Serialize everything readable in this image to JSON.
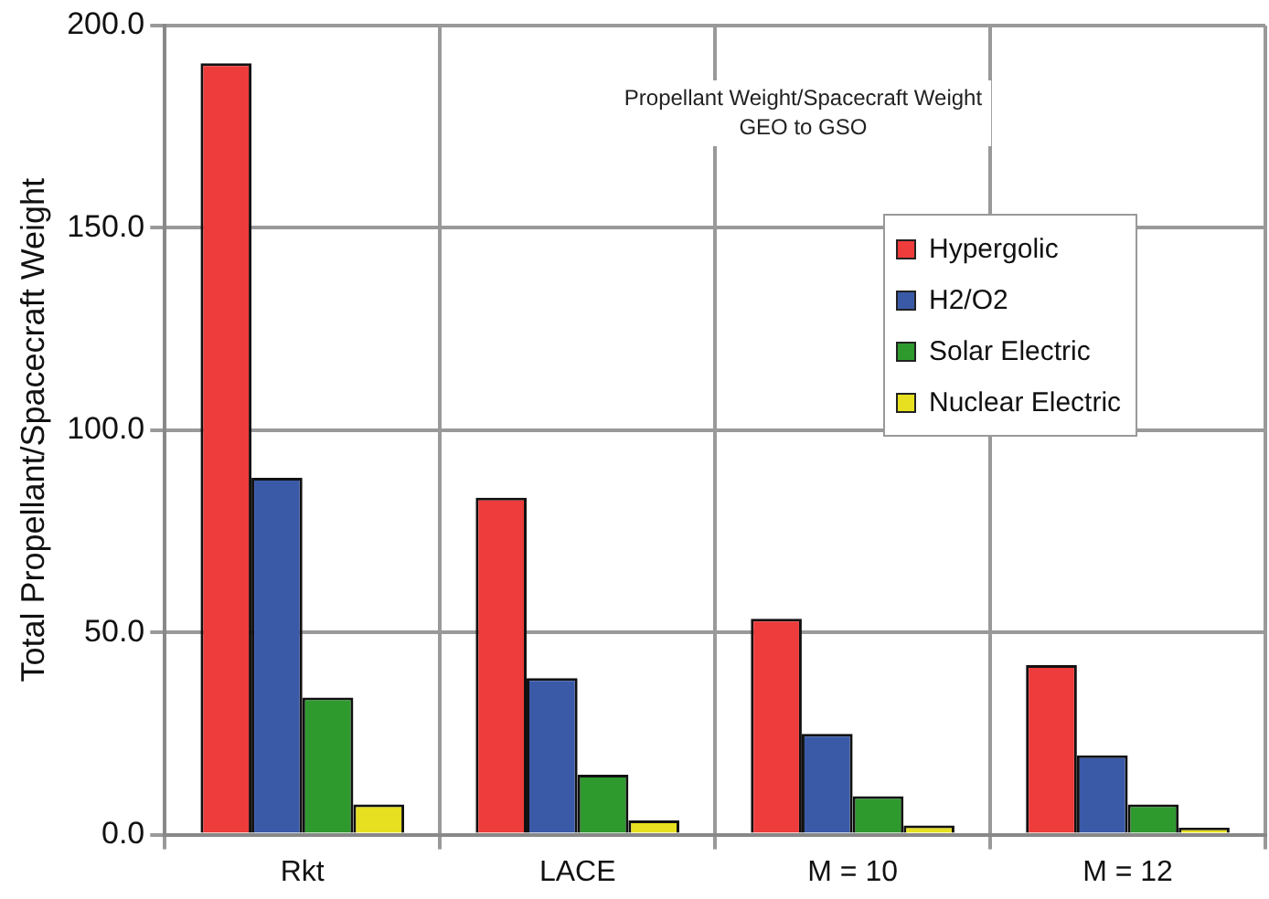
{
  "chart_data": {
    "type": "bar",
    "title": "Propellant Weight/Spacecraft Weight",
    "subtitle": "GEO to GSO",
    "ylabel": "Total Propellant/Spacecraft Weight",
    "categories": [
      "Rkt",
      "LACE",
      "M = 10",
      "M = 12"
    ],
    "series": [
      {
        "name": "Hypergolic",
        "color": "#ee3b3b",
        "values": [
          190.7,
          83.3,
          53.4,
          41.9
        ]
      },
      {
        "name": "H2/O2",
        "color": "#3a5aa8",
        "values": [
          88.2,
          38.7,
          24.9,
          19.6
        ]
      },
      {
        "name": "Solar Electric",
        "color": "#2e9a2e",
        "values": [
          33.9,
          14.8,
          9.5,
          7.5
        ]
      },
      {
        "name": "Nuclear Electric",
        "color": "#e6e020",
        "values": [
          7.5,
          3.5,
          2.3,
          1.7
        ]
      }
    ],
    "ylim": [
      0,
      200
    ],
    "yticks": [
      {
        "value": 0,
        "label": "0.0"
      },
      {
        "value": 50,
        "label": "50.0"
      },
      {
        "value": 100,
        "label": "100.0"
      },
      {
        "value": 150,
        "label": "150.0"
      },
      {
        "value": 200,
        "label": "200.0"
      }
    ],
    "grid": true,
    "legend": "top right"
  }
}
